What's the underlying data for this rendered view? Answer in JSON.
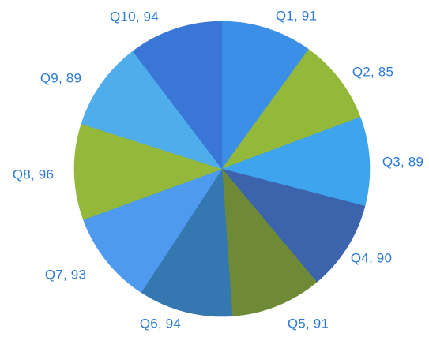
{
  "chart_data": {
    "type": "pie",
    "title": "",
    "categories": [
      "Q1",
      "Q2",
      "Q3",
      "Q4",
      "Q5",
      "Q6",
      "Q7",
      "Q8",
      "Q9",
      "Q10"
    ],
    "values": [
      91,
      85,
      89,
      90,
      91,
      94,
      93,
      96,
      89,
      94
    ],
    "labels": [
      "Q1, 91",
      "Q2, 85",
      "Q3, 89",
      "Q4, 90",
      "Q5, 91",
      "Q6, 94",
      "Q7, 93",
      "Q8, 96",
      "Q9, 89",
      "Q10, 94"
    ],
    "colors": [
      "#3b8fe6",
      "#93b83a",
      "#3fa4ee",
      "#3c64ac",
      "#6e8a37",
      "#3577b0",
      "#4d9aee",
      "#93b83a",
      "#4fadec",
      "#3a76d6"
    ],
    "label_color": "#2b7bd6",
    "legend": "none",
    "start_angle": "12 o'clock, clockwise"
  }
}
